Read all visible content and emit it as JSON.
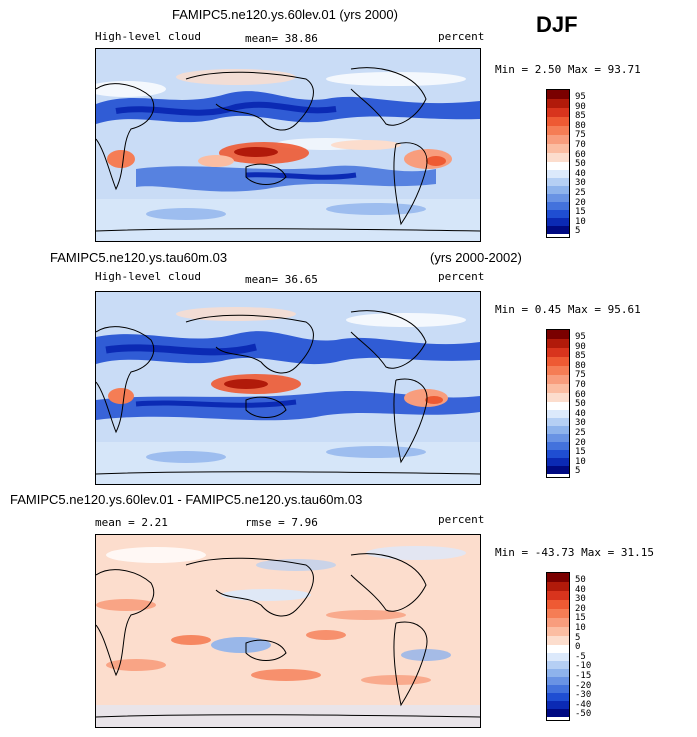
{
  "season": "DJF",
  "palette": {
    "up": [
      "#7a0000",
      "#b11a0a",
      "#d8341d",
      "#ee5a33",
      "#f57d55",
      "#f89d7d",
      "#fbbda2",
      "#fcddcd",
      "#ffffff",
      "#dce9fb",
      "#b5cff4",
      "#8eb3ec",
      "#6993e4",
      "#4372dc",
      "#1f4ed2",
      "#0b2ab4",
      "#000a82"
    ],
    "diff": [
      "#7a0000",
      "#b11a0a",
      "#d8341d",
      "#ee5a33",
      "#f57d55",
      "#f89d7d",
      "#fbbda2",
      "#fcddcd",
      "#ffffff",
      "#dce9fb",
      "#b5cff4",
      "#8eb3ec",
      "#6993e4",
      "#4372dc",
      "#1f4ed2",
      "#0b2ab4",
      "#000a82"
    ]
  },
  "panels": [
    {
      "title": "FAMIPC5.ne120.ys.60lev.01 (yrs 2000)",
      "variable": "High-level cloud",
      "stat": "mean=  38.86",
      "units": "percent",
      "minmax": "Min =   2.50 Max =  93.71",
      "colorbar_labels": [
        "95",
        "90",
        "85",
        "80",
        "75",
        "70",
        "60",
        "50",
        "40",
        "30",
        "25",
        "20",
        "15",
        "10",
        "5"
      ]
    },
    {
      "title": "FAMIPC5.ne120.ys.tau60m.03",
      "title_right": "(yrs 2000-2002)",
      "variable": "High-level cloud",
      "stat": "mean=  36.65",
      "units": "percent",
      "minmax": "Min =   0.45 Max =  95.61",
      "colorbar_labels": [
        "95",
        "90",
        "85",
        "80",
        "75",
        "70",
        "60",
        "50",
        "40",
        "30",
        "25",
        "20",
        "15",
        "10",
        "5"
      ]
    },
    {
      "title": "FAMIPC5.ne120.ys.60lev.01 - FAMIPC5.ne120.ys.tau60m.03",
      "stat": "mean =    2.21",
      "stat2": "rmse =   7.96",
      "units": "percent",
      "minmax": "Min = -43.73 Max =  31.15",
      "colorbar_labels": [
        "50",
        "40",
        "30",
        "20",
        "15",
        "10",
        "5",
        "0",
        "-5",
        "-10",
        "-15",
        "-20",
        "-30",
        "-40",
        "-50"
      ]
    }
  ]
}
